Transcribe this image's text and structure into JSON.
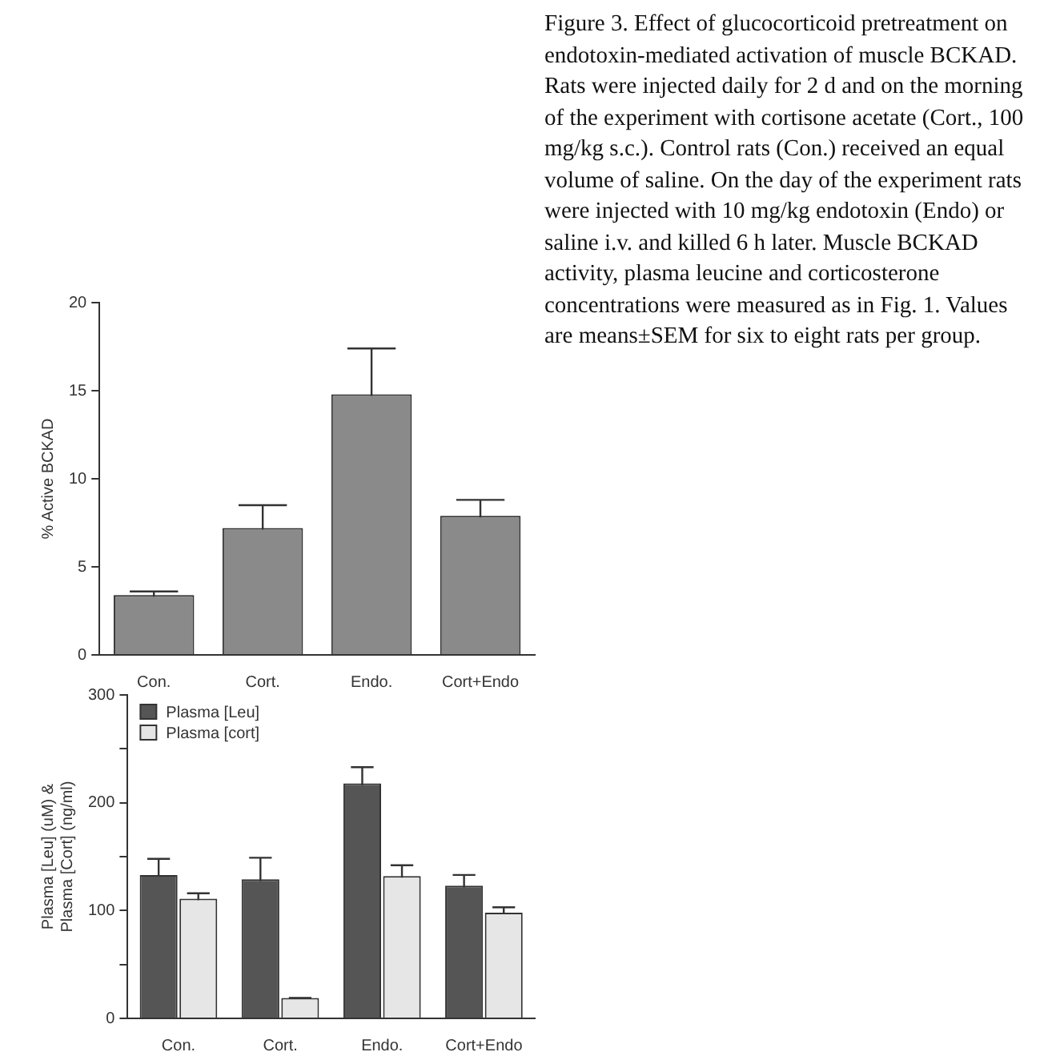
{
  "chart_data": [
    {
      "type": "bar",
      "ylabel": "% Active BCKAD",
      "categories": [
        "Con.",
        "Cort.",
        "Endo.",
        "Cort+Endo"
      ],
      "series": [
        {
          "color": "#8a8a8a",
          "values": [
            3.4,
            7.2,
            14.8,
            7.9
          ],
          "errors": [
            0.2,
            1.3,
            2.6,
            0.9
          ]
        }
      ],
      "ylim": [
        0,
        20
      ],
      "yticks": [
        0,
        5,
        10,
        15,
        20
      ],
      "grid": false,
      "legend": false,
      "annotations": [
        "Figure 3. Effect of glucocorticoid pretreatment on endotoxin-mediated activation of muscle BCKAD. Rats were injected daily for 2 d and on the morning of the experiment with cortisone acetate (Cort., 100 mg/kg s.c.). Control rats (Con.) received an equal volume of saline. On the day of the experiment rats were injected with 10 mg/kg endotoxin (Endo) or saline i.v. and killed 6 h later. Muscle BCKAD activity, plasma leucine and corticosterone concentrations were measured as in Fig. 1. Values are means±SEM for six to eight rats per group."
      ]
    },
    {
      "type": "bar",
      "ylabel": "Plasma [Leu] (uM) &\nPlasma [Cort] (ng/ml)",
      "categories": [
        "Con.",
        "Cort.",
        "Endo.",
        "Cort+Endo"
      ],
      "series": [
        {
          "name": "Plasma [Leu]",
          "color": "#555555",
          "values": [
            133,
            129,
            218,
            123
          ],
          "errors": [
            15,
            20,
            15,
            10
          ]
        },
        {
          "name": "Plasma [cort]",
          "color": "#e6e6e6",
          "values": [
            111,
            19,
            132,
            98
          ],
          "errors": [
            5,
            0,
            10,
            5
          ]
        }
      ],
      "ylim": [
        0,
        300
      ],
      "yticks": [
        0,
        {
          "value": 50,
          "label": null
        },
        100,
        {
          "value": 150,
          "label": null
        },
        200,
        {
          "value": 250,
          "label": null
        },
        300
      ],
      "grid": false,
      "legend": "top left"
    }
  ]
}
